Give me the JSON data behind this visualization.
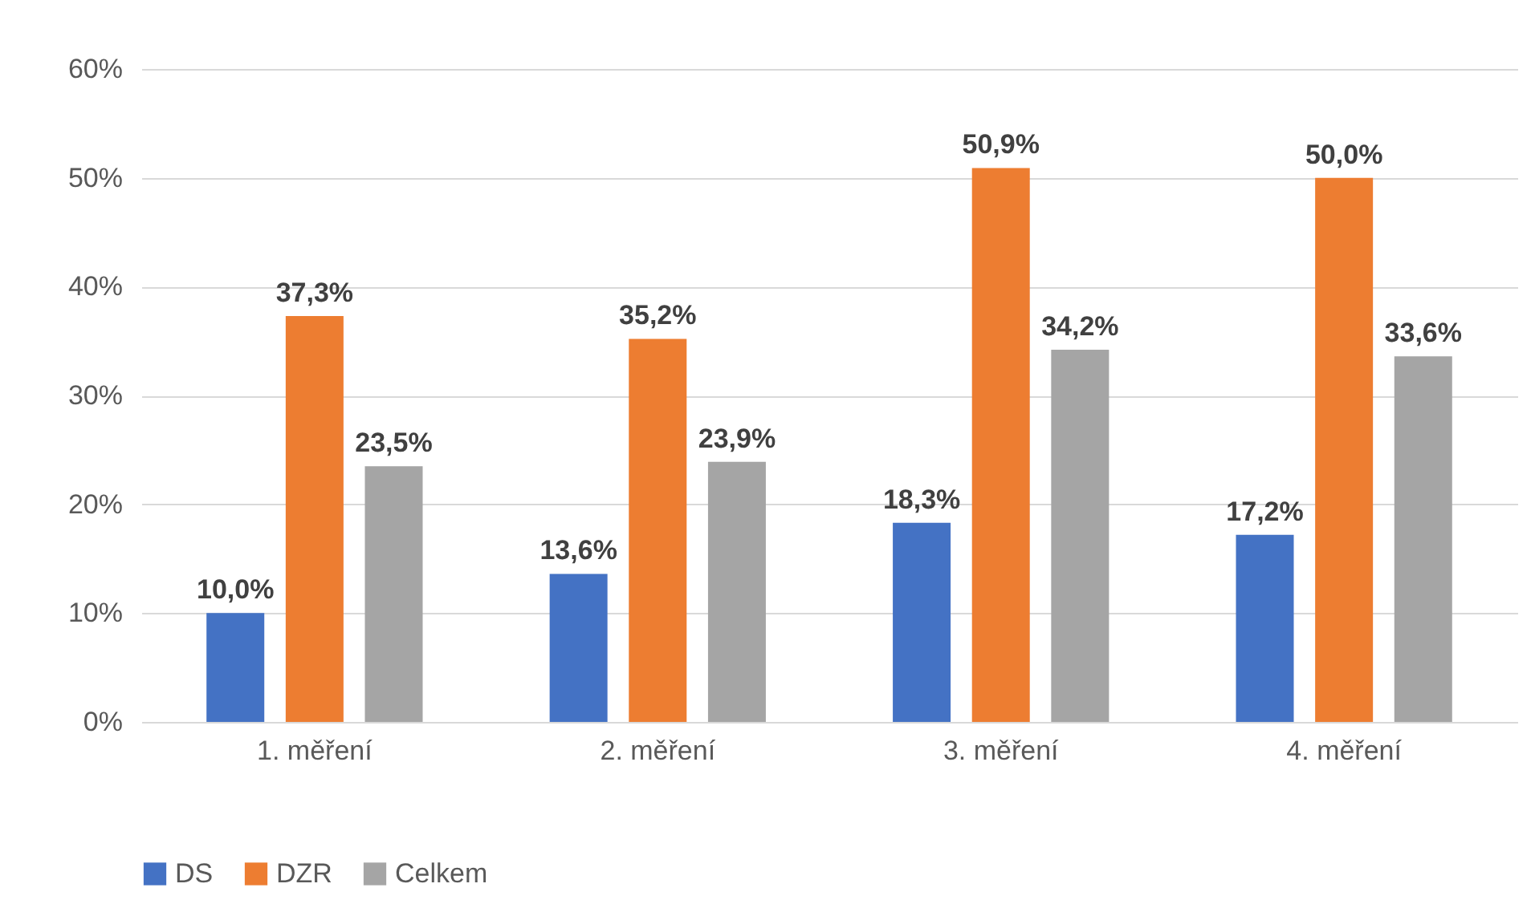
{
  "chart_data": {
    "type": "bar",
    "categories": [
      "1. měření",
      "2. měření",
      "3. měření",
      "4. měření"
    ],
    "series": [
      {
        "name": "DS",
        "color": "#4472c4",
        "values": [
          10.0,
          13.6,
          18.3,
          17.2
        ],
        "value_labels": [
          "10,0%",
          "13,6%",
          "18,3%",
          "17,2%"
        ]
      },
      {
        "name": "DZR",
        "color": "#ed7d31",
        "values": [
          37.3,
          35.2,
          50.9,
          50.0
        ],
        "value_labels": [
          "37,3%",
          "35,2%",
          "50,9%",
          "50,0%"
        ]
      },
      {
        "name": "Celkem",
        "color": "#a5a5a5",
        "values": [
          23.5,
          23.9,
          34.2,
          33.6
        ],
        "value_labels": [
          "23,5%",
          "23,9%",
          "34,2%",
          "33,6%"
        ]
      }
    ],
    "ylim": [
      0,
      60
    ],
    "yticks": [
      {
        "value": 0,
        "label": "0%"
      },
      {
        "value": 10,
        "label": "10%"
      },
      {
        "value": 20,
        "label": "20%"
      },
      {
        "value": 30,
        "label": "30%"
      },
      {
        "value": 40,
        "label": "40%"
      },
      {
        "value": 50,
        "label": "50%"
      },
      {
        "value": 60,
        "label": "60%"
      }
    ],
    "grid": "y",
    "legend": "bottom"
  }
}
